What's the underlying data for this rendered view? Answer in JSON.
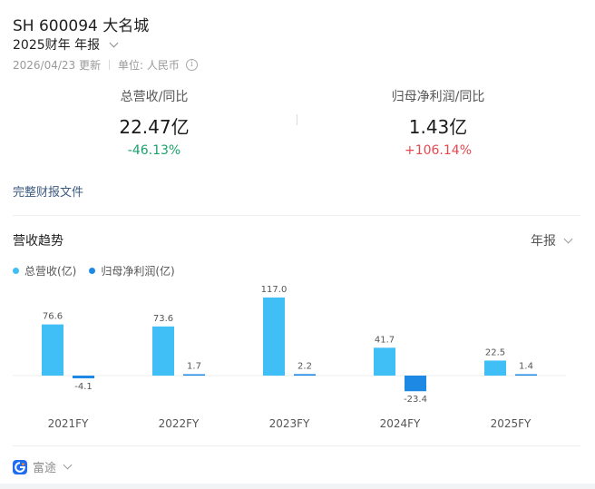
{
  "header": {
    "title": "SH 600094 大名城",
    "period_label": "2025财年 年报",
    "update_text": "2026/04/23 更新",
    "unit_text": "单位: 人民币",
    "info_icon": "info-icon"
  },
  "metrics": {
    "revenue": {
      "label": "总营收/同比",
      "value": "22.47亿",
      "change": "-46.13%",
      "color": "#1aa36a"
    },
    "profit": {
      "label": "归母净利润/同比",
      "value": "1.43亿",
      "change": "+106.14%",
      "color": "#e5484d"
    }
  },
  "links": {
    "full_report": "完整财报文件"
  },
  "trend": {
    "title": "营收趋势",
    "period_select": "年报"
  },
  "footer": {
    "brand": "富途",
    "brand_icon": "futu-logo-icon"
  },
  "colors": {
    "revenue": "#40bff7",
    "profit": "#1e88e5"
  },
  "chart_data": {
    "type": "bar",
    "categories": [
      "2021FY",
      "2022FY",
      "2023FY",
      "2024FY",
      "2025FY"
    ],
    "series": [
      {
        "name": "总营收(亿)",
        "values": [
          76.6,
          73.6,
          117.0,
          41.7,
          22.5
        ],
        "labels": [
          "76.6",
          "73.6",
          "117.0",
          "41.7",
          "22.5"
        ]
      },
      {
        "name": "归母净利润(亿)",
        "values": [
          -4.1,
          1.7,
          2.2,
          -23.4,
          1.4
        ],
        "labels": [
          "-4.1",
          "1.7",
          "2.2",
          "-23.4",
          "1.4"
        ]
      }
    ],
    "legend": "top-left",
    "grid": false
  }
}
